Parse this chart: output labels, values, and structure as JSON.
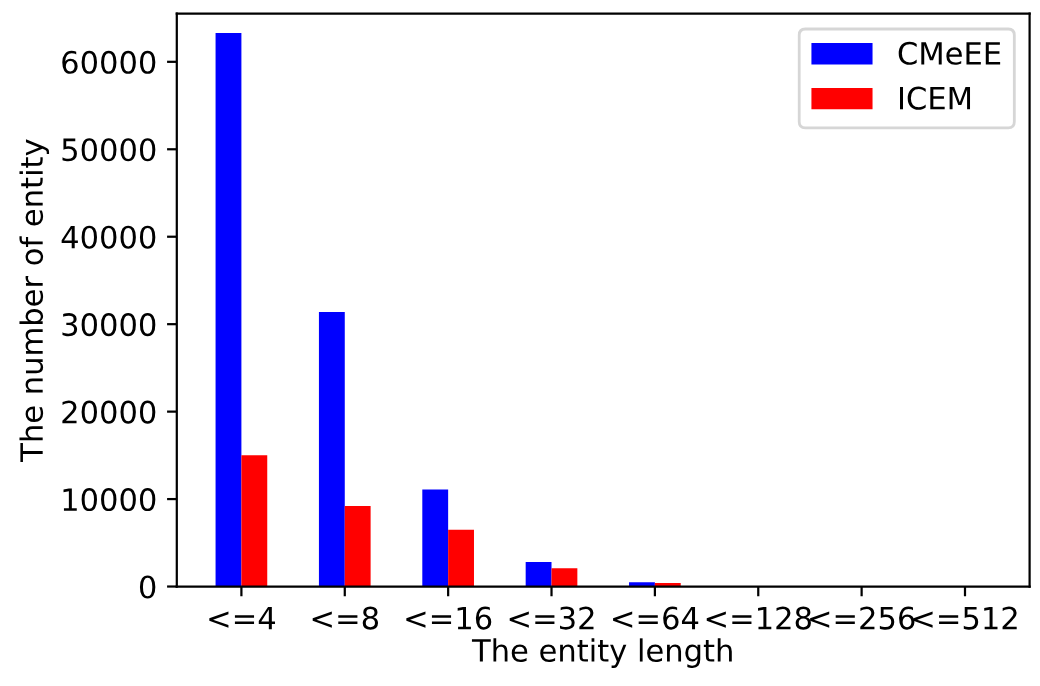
{
  "chart_data": {
    "type": "bar",
    "xlabel": "The entity length",
    "ylabel": "The number of entity",
    "categories": [
      "<=4",
      "<=8",
      "<=16",
      "<=32",
      "<=64",
      "<=128",
      "<=256",
      "<=512"
    ],
    "series": [
      {
        "name": "CMeEE",
        "color": "#0000ff",
        "values": [
          63300,
          31400,
          11100,
          2800,
          500,
          0,
          0,
          0
        ]
      },
      {
        "name": "ICEM",
        "color": "#ff0000",
        "values": [
          15000,
          9200,
          6500,
          2100,
          400,
          0,
          0,
          0
        ]
      }
    ],
    "ylim": [
      0,
      65500
    ],
    "yticks": [
      0,
      10000,
      20000,
      30000,
      40000,
      50000,
      60000
    ],
    "legend": "top right",
    "grid": false
  }
}
